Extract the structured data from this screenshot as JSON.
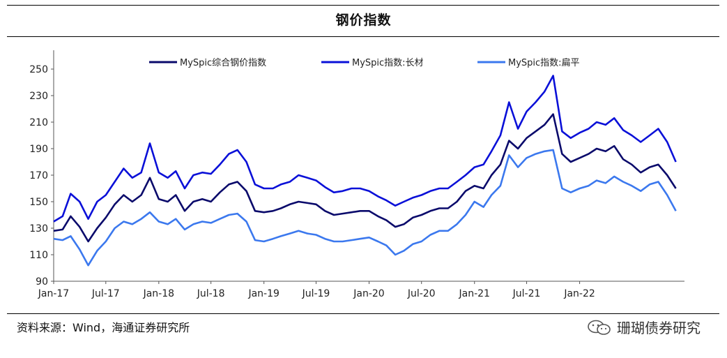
{
  "title": "钢价指数",
  "source": "资料来源：Wind，海通证券研究所",
  "watermark": "珊瑚债券研究",
  "icons": {
    "watermark_icon": "wechat-icon"
  },
  "chart_data": {
    "type": "line",
    "title": "钢价指数",
    "xlabel": "",
    "ylabel": "",
    "ylim": [
      90,
      260
    ],
    "yticks": [
      90,
      110,
      130,
      150,
      170,
      190,
      210,
      230,
      250
    ],
    "xlim": [
      "2017-01-01",
      "2022-12-31"
    ],
    "xticks": [
      {
        "date": "2017-01-01",
        "label": "Jan-17"
      },
      {
        "date": "2017-07-01",
        "label": "Jul-17"
      },
      {
        "date": "2018-01-01",
        "label": "Jan-18"
      },
      {
        "date": "2018-07-01",
        "label": "Jul-18"
      },
      {
        "date": "2019-01-01",
        "label": "Jan-19"
      },
      {
        "date": "2019-07-01",
        "label": "Jul-19"
      },
      {
        "date": "2020-01-01",
        "label": "Jan-20"
      },
      {
        "date": "2020-07-01",
        "label": "Jul-20"
      },
      {
        "date": "2021-01-01",
        "label": "Jan-21"
      },
      {
        "date": "2021-07-01",
        "label": "Jul-21"
      },
      {
        "date": "2022-01-01",
        "label": "Jan-22"
      }
    ],
    "grid": false,
    "legend_position": "top",
    "series": [
      {
        "name": "MySpic综合钢价指数",
        "color": "#0a0a6b",
        "points": [
          [
            "2017-01-01",
            128
          ],
          [
            "2017-02-01",
            129
          ],
          [
            "2017-03-01",
            139
          ],
          [
            "2017-04-01",
            131
          ],
          [
            "2017-05-01",
            120
          ],
          [
            "2017-06-01",
            130
          ],
          [
            "2017-07-01",
            138
          ],
          [
            "2017-08-01",
            148
          ],
          [
            "2017-09-01",
            155
          ],
          [
            "2017-10-01",
            150
          ],
          [
            "2017-11-01",
            155
          ],
          [
            "2017-12-01",
            168
          ],
          [
            "2018-01-01",
            152
          ],
          [
            "2018-02-01",
            150
          ],
          [
            "2018-03-01",
            155
          ],
          [
            "2018-04-01",
            143
          ],
          [
            "2018-05-01",
            150
          ],
          [
            "2018-06-01",
            152
          ],
          [
            "2018-07-01",
            150
          ],
          [
            "2018-08-01",
            157
          ],
          [
            "2018-09-01",
            163
          ],
          [
            "2018-10-01",
            165
          ],
          [
            "2018-11-01",
            158
          ],
          [
            "2018-12-01",
            143
          ],
          [
            "2019-01-01",
            142
          ],
          [
            "2019-02-01",
            143
          ],
          [
            "2019-03-01",
            145
          ],
          [
            "2019-04-01",
            148
          ],
          [
            "2019-05-01",
            150
          ],
          [
            "2019-06-01",
            149
          ],
          [
            "2019-07-01",
            148
          ],
          [
            "2019-08-01",
            143
          ],
          [
            "2019-09-01",
            140
          ],
          [
            "2019-10-01",
            141
          ],
          [
            "2019-11-01",
            142
          ],
          [
            "2019-12-01",
            143
          ],
          [
            "2020-01-01",
            143
          ],
          [
            "2020-02-01",
            139
          ],
          [
            "2020-03-01",
            136
          ],
          [
            "2020-04-01",
            131
          ],
          [
            "2020-05-01",
            133
          ],
          [
            "2020-06-01",
            138
          ],
          [
            "2020-07-01",
            140
          ],
          [
            "2020-08-01",
            143
          ],
          [
            "2020-09-01",
            145
          ],
          [
            "2020-10-01",
            145
          ],
          [
            "2020-11-01",
            150
          ],
          [
            "2020-12-01",
            158
          ],
          [
            "2021-01-01",
            162
          ],
          [
            "2021-02-01",
            160
          ],
          [
            "2021-03-01",
            170
          ],
          [
            "2021-04-01",
            178
          ],
          [
            "2021-05-01",
            196
          ],
          [
            "2021-06-01",
            190
          ],
          [
            "2021-07-01",
            198
          ],
          [
            "2021-08-01",
            203
          ],
          [
            "2021-09-01",
            208
          ],
          [
            "2021-10-01",
            216
          ],
          [
            "2021-11-01",
            186
          ],
          [
            "2021-12-01",
            180
          ],
          [
            "2022-01-01",
            183
          ],
          [
            "2022-02-01",
            186
          ],
          [
            "2022-03-01",
            190
          ],
          [
            "2022-04-01",
            188
          ],
          [
            "2022-05-01",
            192
          ],
          [
            "2022-06-01",
            182
          ],
          [
            "2022-07-01",
            178
          ],
          [
            "2022-08-01",
            172
          ],
          [
            "2022-09-01",
            176
          ],
          [
            "2022-10-01",
            178
          ],
          [
            "2022-11-01",
            170
          ],
          [
            "2022-12-01",
            160
          ]
        ]
      },
      {
        "name": "MySpic指数:长材",
        "color": "#0a10d8",
        "points": [
          [
            "2017-01-01",
            135
          ],
          [
            "2017-02-01",
            139
          ],
          [
            "2017-03-01",
            156
          ],
          [
            "2017-04-01",
            150
          ],
          [
            "2017-05-01",
            137
          ],
          [
            "2017-06-01",
            150
          ],
          [
            "2017-07-01",
            155
          ],
          [
            "2017-08-01",
            165
          ],
          [
            "2017-09-01",
            175
          ],
          [
            "2017-10-01",
            168
          ],
          [
            "2017-11-01",
            172
          ],
          [
            "2017-12-01",
            194
          ],
          [
            "2018-01-01",
            172
          ],
          [
            "2018-02-01",
            168
          ],
          [
            "2018-03-01",
            173
          ],
          [
            "2018-04-01",
            160
          ],
          [
            "2018-05-01",
            170
          ],
          [
            "2018-06-01",
            172
          ],
          [
            "2018-07-01",
            171
          ],
          [
            "2018-08-01",
            178
          ],
          [
            "2018-09-01",
            186
          ],
          [
            "2018-10-01",
            189
          ],
          [
            "2018-11-01",
            180
          ],
          [
            "2018-12-01",
            163
          ],
          [
            "2019-01-01",
            160
          ],
          [
            "2019-02-01",
            160
          ],
          [
            "2019-03-01",
            163
          ],
          [
            "2019-04-01",
            165
          ],
          [
            "2019-05-01",
            170
          ],
          [
            "2019-06-01",
            168
          ],
          [
            "2019-07-01",
            166
          ],
          [
            "2019-08-01",
            161
          ],
          [
            "2019-09-01",
            157
          ],
          [
            "2019-10-01",
            158
          ],
          [
            "2019-11-01",
            160
          ],
          [
            "2019-12-01",
            160
          ],
          [
            "2020-01-01",
            158
          ],
          [
            "2020-02-01",
            154
          ],
          [
            "2020-03-01",
            151
          ],
          [
            "2020-04-01",
            147
          ],
          [
            "2020-05-01",
            150
          ],
          [
            "2020-06-01",
            153
          ],
          [
            "2020-07-01",
            155
          ],
          [
            "2020-08-01",
            158
          ],
          [
            "2020-09-01",
            160
          ],
          [
            "2020-10-01",
            160
          ],
          [
            "2020-11-01",
            165
          ],
          [
            "2020-12-01",
            170
          ],
          [
            "2021-01-01",
            176
          ],
          [
            "2021-02-01",
            178
          ],
          [
            "2021-03-01",
            188
          ],
          [
            "2021-04-01",
            200
          ],
          [
            "2021-05-01",
            225
          ],
          [
            "2021-06-01",
            205
          ],
          [
            "2021-07-01",
            218
          ],
          [
            "2021-08-01",
            225
          ],
          [
            "2021-09-01",
            233
          ],
          [
            "2021-10-01",
            245
          ],
          [
            "2021-11-01",
            203
          ],
          [
            "2021-12-01",
            198
          ],
          [
            "2022-01-01",
            202
          ],
          [
            "2022-02-01",
            205
          ],
          [
            "2022-03-01",
            210
          ],
          [
            "2022-04-01",
            208
          ],
          [
            "2022-05-01",
            213
          ],
          [
            "2022-06-01",
            204
          ],
          [
            "2022-07-01",
            200
          ],
          [
            "2022-08-01",
            195
          ],
          [
            "2022-09-01",
            200
          ],
          [
            "2022-10-01",
            205
          ],
          [
            "2022-11-01",
            195
          ],
          [
            "2022-12-01",
            180
          ]
        ]
      },
      {
        "name": "MySpic指数:扁平",
        "color": "#3b78ee",
        "points": [
          [
            "2017-01-01",
            122
          ],
          [
            "2017-02-01",
            121
          ],
          [
            "2017-03-01",
            124
          ],
          [
            "2017-04-01",
            114
          ],
          [
            "2017-05-01",
            102
          ],
          [
            "2017-06-01",
            113
          ],
          [
            "2017-07-01",
            120
          ],
          [
            "2017-08-01",
            130
          ],
          [
            "2017-09-01",
            135
          ],
          [
            "2017-10-01",
            133
          ],
          [
            "2017-11-01",
            137
          ],
          [
            "2017-12-01",
            142
          ],
          [
            "2018-01-01",
            135
          ],
          [
            "2018-02-01",
            133
          ],
          [
            "2018-03-01",
            137
          ],
          [
            "2018-04-01",
            129
          ],
          [
            "2018-05-01",
            133
          ],
          [
            "2018-06-01",
            135
          ],
          [
            "2018-07-01",
            134
          ],
          [
            "2018-08-01",
            137
          ],
          [
            "2018-09-01",
            140
          ],
          [
            "2018-10-01",
            141
          ],
          [
            "2018-11-01",
            135
          ],
          [
            "2018-12-01",
            121
          ],
          [
            "2019-01-01",
            120
          ],
          [
            "2019-02-01",
            122
          ],
          [
            "2019-03-01",
            124
          ],
          [
            "2019-04-01",
            126
          ],
          [
            "2019-05-01",
            128
          ],
          [
            "2019-06-01",
            126
          ],
          [
            "2019-07-01",
            125
          ],
          [
            "2019-08-01",
            122
          ],
          [
            "2019-09-01",
            120
          ],
          [
            "2019-10-01",
            120
          ],
          [
            "2019-11-01",
            121
          ],
          [
            "2019-12-01",
            122
          ],
          [
            "2020-01-01",
            123
          ],
          [
            "2020-02-01",
            120
          ],
          [
            "2020-03-01",
            117
          ],
          [
            "2020-04-01",
            110
          ],
          [
            "2020-05-01",
            113
          ],
          [
            "2020-06-01",
            118
          ],
          [
            "2020-07-01",
            120
          ],
          [
            "2020-08-01",
            125
          ],
          [
            "2020-09-01",
            128
          ],
          [
            "2020-10-01",
            128
          ],
          [
            "2020-11-01",
            133
          ],
          [
            "2020-12-01",
            140
          ],
          [
            "2021-01-01",
            150
          ],
          [
            "2021-02-01",
            146
          ],
          [
            "2021-03-01",
            155
          ],
          [
            "2021-04-01",
            162
          ],
          [
            "2021-05-01",
            185
          ],
          [
            "2021-06-01",
            176
          ],
          [
            "2021-07-01",
            183
          ],
          [
            "2021-08-01",
            186
          ],
          [
            "2021-09-01",
            188
          ],
          [
            "2021-10-01",
            189
          ],
          [
            "2021-11-01",
            160
          ],
          [
            "2021-12-01",
            157
          ],
          [
            "2022-01-01",
            160
          ],
          [
            "2022-02-01",
            162
          ],
          [
            "2022-03-01",
            166
          ],
          [
            "2022-04-01",
            164
          ],
          [
            "2022-05-01",
            169
          ],
          [
            "2022-06-01",
            165
          ],
          [
            "2022-07-01",
            162
          ],
          [
            "2022-08-01",
            158
          ],
          [
            "2022-09-01",
            163
          ],
          [
            "2022-10-01",
            165
          ],
          [
            "2022-11-01",
            155
          ],
          [
            "2022-12-01",
            143
          ]
        ]
      }
    ]
  }
}
